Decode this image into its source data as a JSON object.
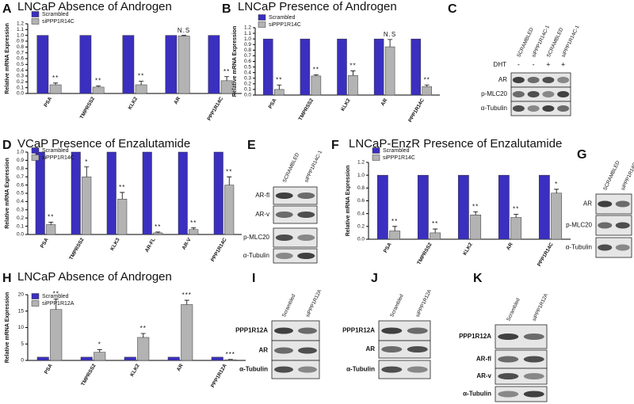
{
  "chart_data": [
    {
      "type": "bar",
      "panel": "A",
      "title": "LNCaP Absence of Androgen",
      "ylabel": "Relative mRNA Expression",
      "categories": [
        "PSA",
        "TMPRSS2",
        "KLK2",
        "AR",
        "PPP1R14C"
      ],
      "series": [
        {
          "name": "Scrambled",
          "color": "#3b2fbf",
          "values": [
            1,
            1,
            1,
            1,
            1
          ]
        },
        {
          "name": "siPPP1R14C",
          "color": "#b3b3b3",
          "values": [
            0.15,
            0.11,
            0.15,
            0.99,
            0.22
          ],
          "errors": [
            0.03,
            0.02,
            0.06,
            0.01,
            0.07
          ]
        }
      ],
      "annotations": [
        "**",
        "**",
        "**",
        "N.S",
        "**"
      ],
      "ylim": [
        0,
        1.2
      ],
      "yticks": [
        {
          "value": 0,
          "label": "0.0"
        },
        0.1,
        0.2,
        0.3,
        0.4,
        0.5,
        0.6,
        0.7,
        0.8,
        0.9,
        {
          "value": 1,
          "label": "1.0"
        },
        1.1,
        1.2
      ]
    },
    {
      "type": "bar",
      "panel": "B",
      "title": "LNCaP Presence of Androgen",
      "ylabel": "Relative mRNA Expression",
      "categories": [
        "PSA",
        "TMPRSS2",
        "KLK2",
        "AR",
        "PPP1R14C"
      ],
      "series": [
        {
          "name": "Scrambled",
          "color": "#3b2fbf",
          "values": [
            1,
            1,
            1,
            1,
            1
          ]
        },
        {
          "name": "siPPP1R14C",
          "color": "#b3b3b3",
          "values": [
            0.1,
            0.34,
            0.35,
            0.86,
            0.15
          ],
          "errors": [
            0.08,
            0.02,
            0.08,
            0.13,
            0.03
          ]
        }
      ],
      "annotations": [
        "**",
        "**",
        "**",
        "N.S",
        "**"
      ],
      "ylim": [
        0,
        1.2
      ],
      "yticks": [
        {
          "value": 0,
          "label": "0.0"
        },
        0.1,
        0.2,
        0.3,
        0.4,
        0.5,
        0.6,
        0.7,
        0.8,
        0.9,
        {
          "value": 1,
          "label": "1.0"
        },
        1.1,
        1.2
      ]
    },
    {
      "type": "bar",
      "panel": "D",
      "title": "VCaP Presence of Enzalutamide",
      "ylabel": "Relative mRNA Expression",
      "categories": [
        "PSA",
        "TMPRSS2",
        "KLK3",
        "AR-FL",
        "AR-V",
        "PPP1R14C"
      ],
      "series": [
        {
          "name": "Scrambled",
          "color": "#3b2fbf",
          "values": [
            1,
            1,
            1,
            1,
            1,
            1
          ]
        },
        {
          "name": "siPPP1R14C",
          "color": "#b3b3b3",
          "values": [
            0.12,
            0.7,
            0.43,
            0.02,
            0.06,
            0.6
          ],
          "errors": [
            0.03,
            0.12,
            0.08,
            0.01,
            0.02,
            0.1
          ]
        }
      ],
      "annotations": [
        "**",
        "*",
        "**",
        "**",
        "**",
        "**"
      ],
      "ylim": [
        0,
        1
      ],
      "yticks": [
        {
          "value": 0,
          "label": "0.0"
        },
        0.1,
        0.2,
        0.3,
        0.4,
        0.5,
        0.6,
        0.7,
        0.8,
        0.9,
        {
          "value": 1,
          "label": "1.0"
        }
      ]
    },
    {
      "type": "bar",
      "panel": "F",
      "title": "LNCaP-EnzR Presence of Enzalutamide",
      "ylabel": "Relative mRNA Expression",
      "categories": [
        "PSA",
        "TMPRSS2",
        "KLK2",
        "AR",
        "PPP1R14C"
      ],
      "series": [
        {
          "name": "Scrambled",
          "color": "#3b2fbf",
          "values": [
            1,
            1,
            1,
            1,
            1
          ]
        },
        {
          "name": "siPPP1R14C",
          "color": "#b3b3b3",
          "values": [
            0.13,
            0.1,
            0.38,
            0.34,
            0.72
          ],
          "errors": [
            0.07,
            0.06,
            0.05,
            0.05,
            0.06
          ]
        }
      ],
      "annotations": [
        "**",
        "**",
        "**",
        "**",
        "*"
      ],
      "ylim": [
        0,
        1.2
      ],
      "yticks": [
        {
          "value": 0,
          "label": "0.0"
        },
        0.2,
        0.4,
        0.6,
        0.8,
        {
          "value": 1,
          "label": "1.0"
        },
        1.2
      ]
    },
    {
      "type": "bar",
      "panel": "H",
      "title": "LNCaP Absence of Androgen",
      "ylabel": "Relative mRNA Expression",
      "categories": [
        "PSA",
        "TMPRSS2",
        "KLK2",
        "AR",
        "PPP1R12A"
      ],
      "series": [
        {
          "name": "Scrambled",
          "color": "#3b2fbf",
          "values": [
            1,
            1,
            1,
            1,
            1
          ]
        },
        {
          "name": "siPPP1R12A",
          "color": "#b3b3b3",
          "values": [
            15.5,
            2.5,
            7,
            17,
            0.2
          ],
          "errors": [
            3.2,
            0.8,
            1.2,
            1.3,
            0.1
          ]
        }
      ],
      "annotations": [
        "**",
        "*",
        "**",
        "***",
        "***"
      ],
      "ylim": [
        0,
        20
      ],
      "yticks": [
        0,
        5,
        10,
        15,
        20
      ]
    }
  ],
  "blots": [
    {
      "panel": "C",
      "lanes": [
        "SCRAMBLED",
        "siPPP1R14C-1",
        "SCRAMBLED",
        "siPPP1R14C-1"
      ],
      "treatment": {
        "label": "DHT",
        "values": [
          "-",
          "-",
          "+",
          "+"
        ]
      },
      "rows": [
        "AR",
        "p-MLC20",
        "α-Tubulin"
      ]
    },
    {
      "panel": "E",
      "lanes": [
        "SCRAMBLED",
        "siPPP1R14C-1"
      ],
      "rows": [
        "AR-fl",
        "AR-v",
        "p-MLC20",
        "α-Tubulin"
      ]
    },
    {
      "panel": "G",
      "lanes": [
        "SCRAMBLED",
        "siPPP1R14C-1"
      ],
      "rows": [
        "AR",
        "p-MLC20",
        "α-Tubulin"
      ]
    },
    {
      "panel": "I",
      "lanes": [
        "Scrambled",
        "siPPP1R12A"
      ],
      "rows": [
        "PPP1R12A",
        "AR",
        "α-Tubulin"
      ]
    },
    {
      "panel": "J",
      "lanes": [
        "Scrambled",
        "siPPP1R12A"
      ],
      "rows": [
        "PPP1R12A",
        "AR",
        "α-Tubulin"
      ]
    },
    {
      "panel": "K",
      "lanes": [
        "Scrambled",
        "siPPP1R12A"
      ],
      "rows": [
        "PPP1R12A",
        "AR-fl",
        "AR-v",
        "α-Tubulin"
      ]
    }
  ]
}
